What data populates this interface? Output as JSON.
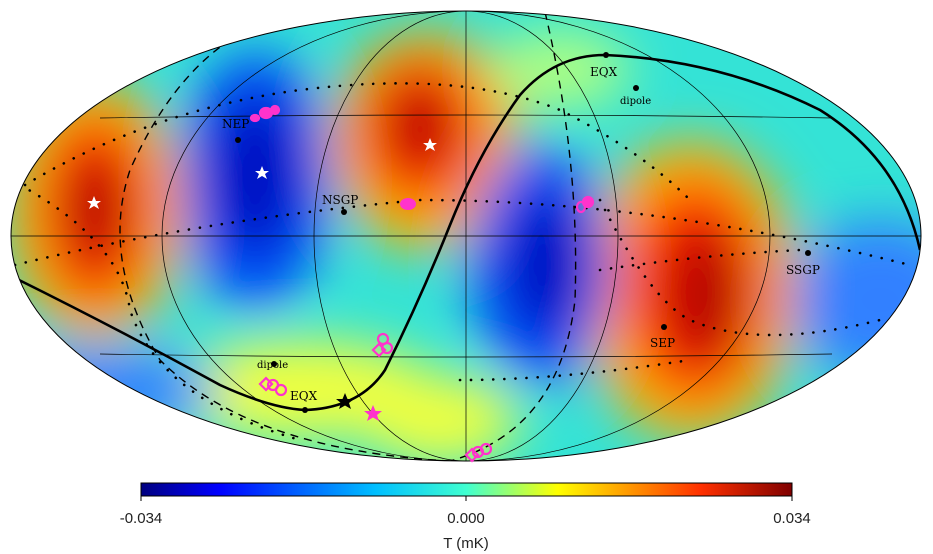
{
  "markers": {
    "nep": "NEP",
    "nsgp": "NSGP",
    "eqx_top": "EQX",
    "dipole_top": "dipole",
    "ssgp": "SSGP",
    "sep": "SEP",
    "dipole_bottom": "dipole",
    "eqx_bottom": "EQX"
  },
  "colorbar": {
    "min_label": "-0.034",
    "mid_label": "0.000",
    "max_label": "0.034",
    "unit": "T (mK)",
    "colors": [
      "#00007f",
      "#0000ff",
      "#00bfff",
      "#33ffe0",
      "#ffff00",
      "#ff8000",
      "#ff0000",
      "#7f0000"
    ]
  },
  "colors": {
    "highlight_magenta": "#ff33cc",
    "line_black": "#000000"
  }
}
